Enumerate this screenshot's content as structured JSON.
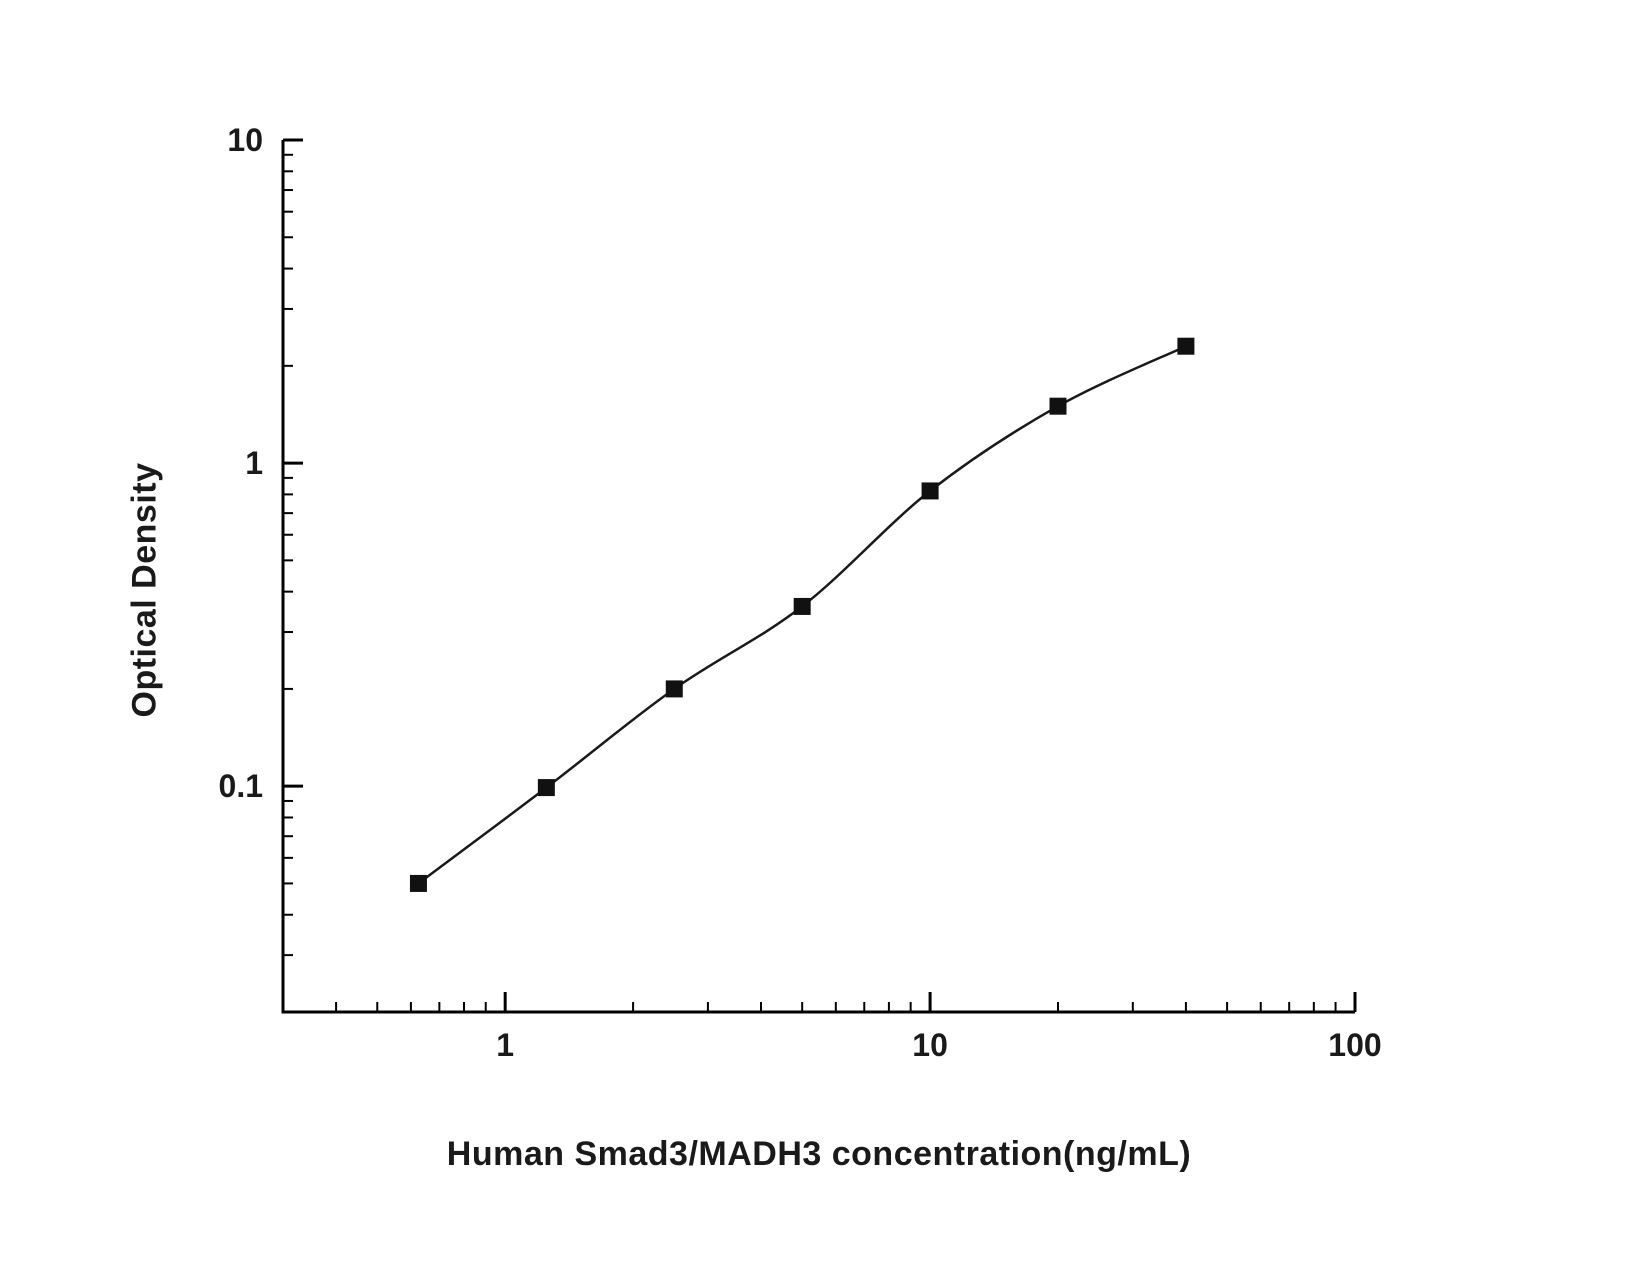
{
  "chart_data": {
    "type": "scatter",
    "subtype": "scatter-with-smooth-line",
    "title": "",
    "xlabel": "Human Smad3/MADH3 concentration(ng/mL)",
    "ylabel": "Optical Density",
    "x_scale": "log",
    "y_scale": "log",
    "xlim": [
      0.3,
      100
    ],
    "ylim": [
      0.02,
      10
    ],
    "x_major_ticks": [
      1,
      10,
      100
    ],
    "x_major_tick_labels": [
      "1",
      "10",
      "100"
    ],
    "y_major_ticks": [
      0.1,
      1,
      10
    ],
    "y_major_tick_labels": [
      "0.1",
      "1",
      "10"
    ],
    "grid": false,
    "legend": "none",
    "marker": "filled-square",
    "points": [
      {
        "x": 0.625,
        "y": 0.05
      },
      {
        "x": 1.25,
        "y": 0.099
      },
      {
        "x": 2.5,
        "y": 0.2
      },
      {
        "x": 5,
        "y": 0.36
      },
      {
        "x": 10,
        "y": 0.82
      },
      {
        "x": 20,
        "y": 1.5
      },
      {
        "x": 40,
        "y": 2.3
      }
    ],
    "colors": {
      "axis": "#000000",
      "line": "#1a1a1a",
      "marker": "#111111",
      "text": "#1a1a1a",
      "background": "#ffffff"
    }
  }
}
